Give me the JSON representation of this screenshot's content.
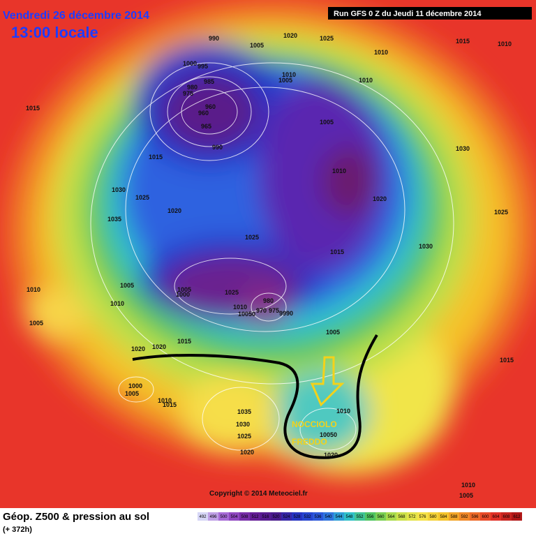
{
  "header": {
    "date": "Vendredi 26 décembre 2014",
    "time": "13:00 locale",
    "run": "Run GFS 0 Z du Jeudi 11 décembre 2014"
  },
  "isobars": [
    "990",
    "1020",
    "1025",
    "1010",
    "1015",
    "1010",
    "1005",
    "1000",
    "995",
    "985",
    "980",
    "975",
    "960",
    "960",
    "965",
    "990",
    "1010",
    "1005",
    "1010",
    "1005",
    "1015",
    "1030",
    "1015",
    "1010",
    "1020",
    "1030",
    "1025",
    "1020",
    "1035",
    "1025",
    "1015",
    "1030",
    "1025",
    "1010",
    "1005",
    "1005",
    "1000",
    "1010",
    "1025",
    "980",
    "1010",
    "970",
    "975",
    "9990",
    "10050",
    "1005",
    "1005",
    "1015",
    "1020",
    "1020",
    "1000",
    "1005",
    "1010",
    "1015",
    "1035",
    "1030",
    "1025",
    "1020",
    "1010",
    "10050",
    "1020",
    "1015",
    "1010",
    "1005"
  ],
  "annotation": {
    "lines": [
      "NOCCIOLO",
      "FREDDO"
    ]
  },
  "footer": {
    "title": "Géop. Z500 & pression au sol",
    "lead": "(+ 372h)",
    "copyright": "Copyright © 2014 Meteociel.fr"
  },
  "legend": {
    "values": [
      492,
      496,
      500,
      504,
      508,
      512,
      516,
      520,
      524,
      528,
      532,
      536,
      540,
      544,
      548,
      552,
      556,
      560,
      564,
      568,
      572,
      576,
      580,
      584,
      588,
      592,
      596,
      600,
      604,
      608,
      612
    ]
  }
}
